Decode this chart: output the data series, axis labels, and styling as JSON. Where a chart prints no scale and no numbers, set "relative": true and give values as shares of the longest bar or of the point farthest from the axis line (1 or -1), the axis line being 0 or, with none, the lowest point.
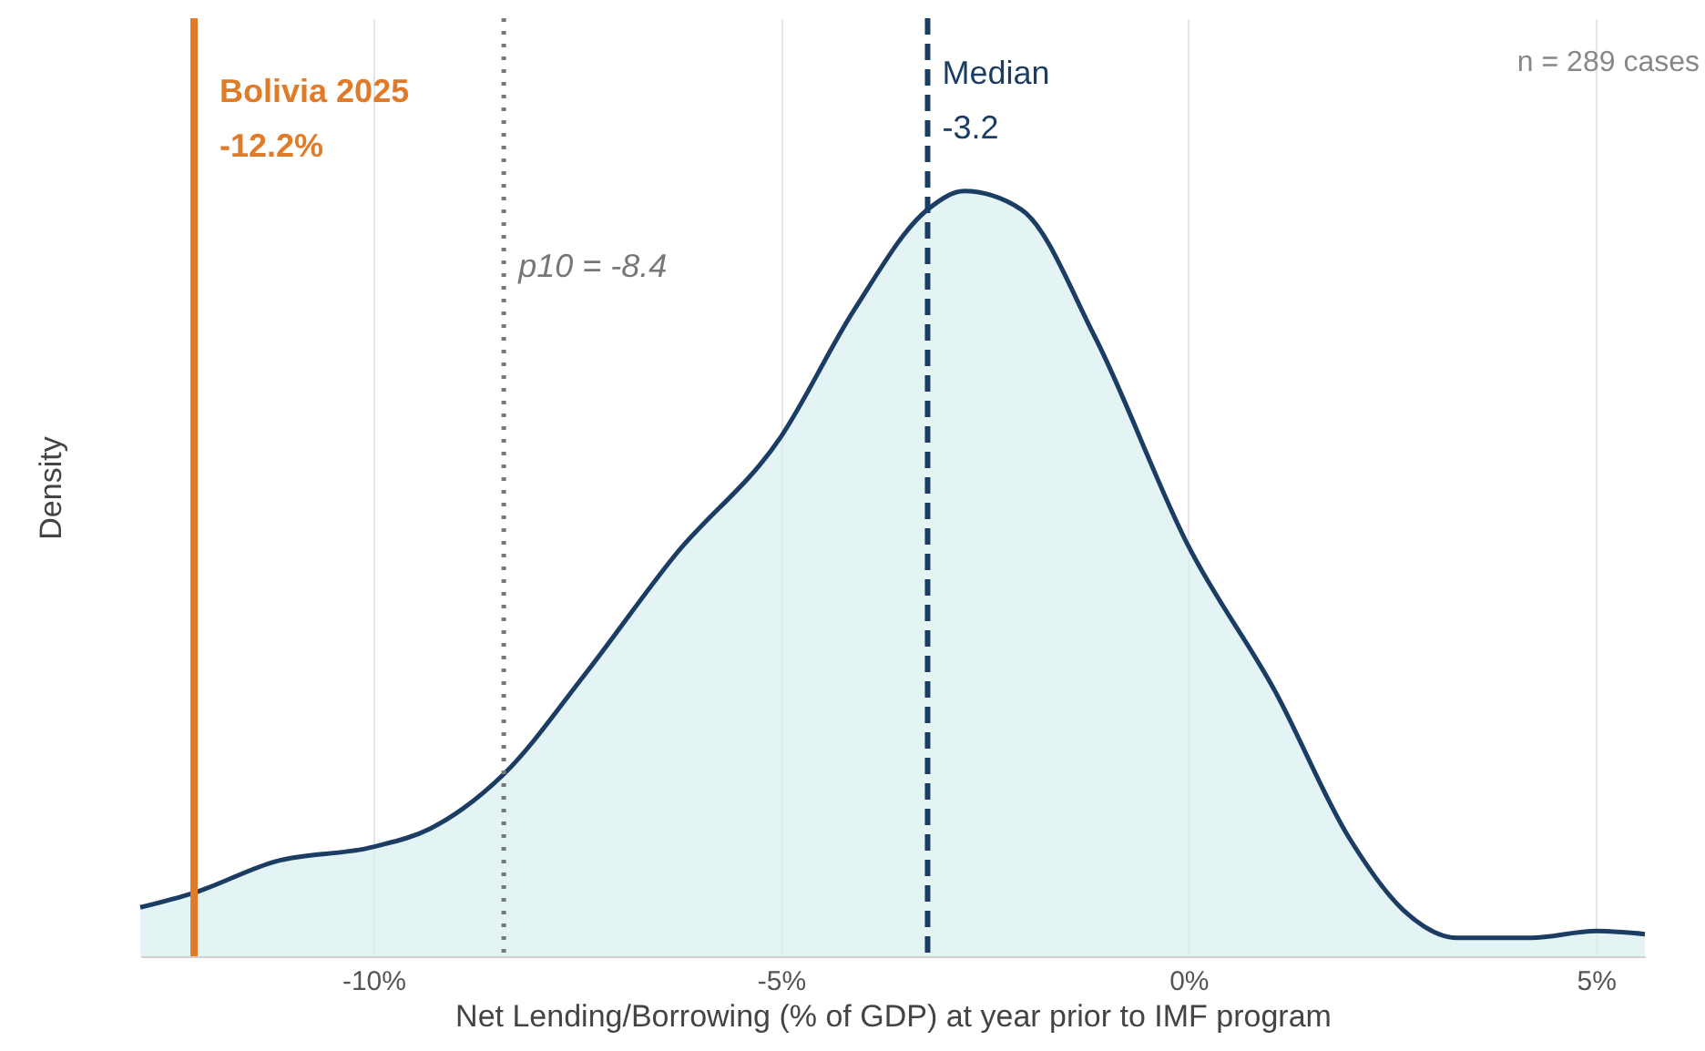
{
  "chart_data": {
    "type": "area",
    "relative": true,
    "xlabel": "Net Lending/Borrowing (% of GDP) at year prior to IMF program",
    "ylabel": "Density",
    "xlim": [
      -12.86,
      5.6
    ],
    "xticks": [
      {
        "value": -10,
        "label": "-10%"
      },
      {
        "value": -5,
        "label": "-5%"
      },
      {
        "value": 0,
        "label": "0%"
      },
      {
        "value": 5,
        "label": "5%"
      }
    ],
    "grid": "x",
    "series": [
      {
        "color": "#1c3d63",
        "x": [
          -12.86,
          -12.2,
          -11.2,
          -10,
          -9.3,
          -8.4,
          -7.4,
          -6.3,
          -5,
          -4.1,
          -3.2,
          -2.75,
          -2.05,
          -1.15,
          0,
          1.07,
          1.97,
          2.64,
          3.3,
          4.2,
          5,
          5.6
        ],
        "values": [
          0.064,
          0.083,
          0.124,
          0.143,
          0.167,
          0.238,
          0.369,
          0.524,
          0.679,
          0.845,
          0.976,
          1,
          0.976,
          0.81,
          0.536,
          0.345,
          0.155,
          0.06,
          0.024,
          0.024,
          0.033,
          0.029
        ]
      }
    ],
    "ref_lines": [
      {
        "axis": "x",
        "value": -12.2,
        "label": "Bolivia 2025\n-12.2%",
        "color": "#e07b29",
        "line_style": "solid"
      },
      {
        "axis": "x",
        "value": -8.4,
        "label": "p10 = -8.4",
        "color": "#777777",
        "line_style": "dotted"
      },
      {
        "axis": "x",
        "value": -3.2,
        "label": "Median\n-3.2",
        "color": "#1c3d63",
        "line_style": "dashed"
      }
    ],
    "annotations": [
      "n = 289 cases"
    ]
  }
}
